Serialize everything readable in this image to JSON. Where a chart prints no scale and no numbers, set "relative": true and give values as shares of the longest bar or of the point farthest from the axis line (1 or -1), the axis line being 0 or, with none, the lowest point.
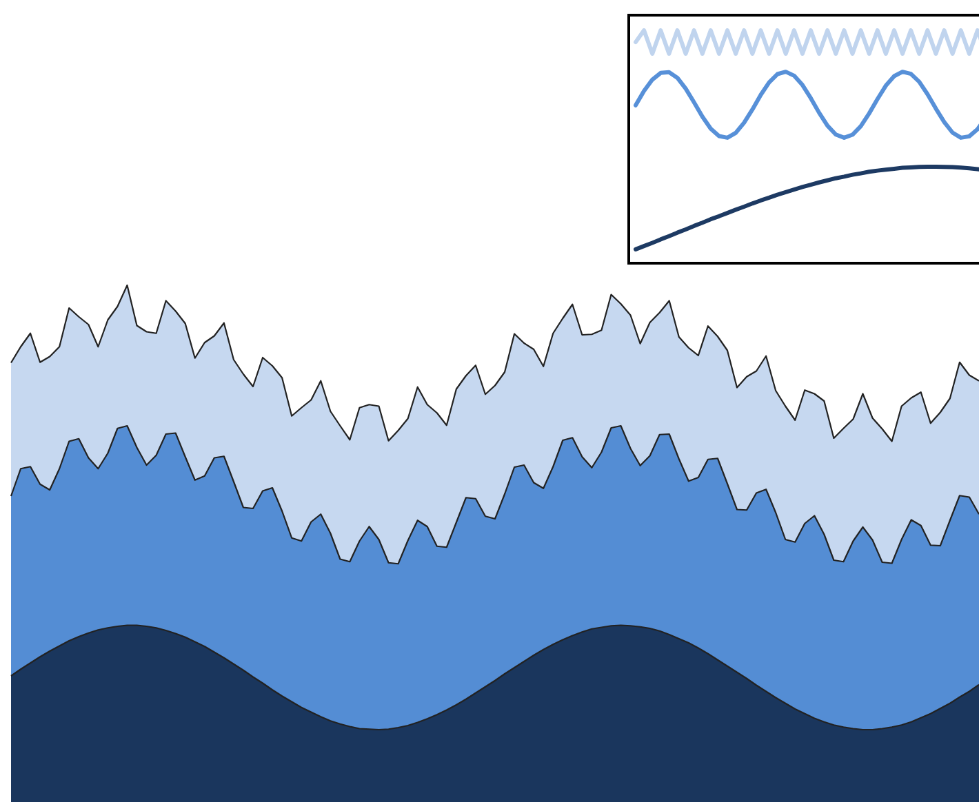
{
  "chart_data": [
    {
      "type": "area",
      "stacked": true,
      "relative": true,
      "categories": [
        null,
        null,
        null,
        null,
        null,
        null,
        null,
        null,
        null,
        null,
        null,
        null,
        null,
        null,
        null,
        null,
        null,
        null,
        null,
        null,
        null,
        null,
        null,
        null,
        null,
        null,
        null,
        null,
        null,
        null,
        null,
        null,
        null,
        null,
        null,
        null,
        null,
        null,
        null,
        null,
        null,
        null,
        null,
        null,
        null,
        null,
        null,
        null,
        null,
        null,
        null,
        null,
        null,
        null,
        null,
        null,
        null,
        null,
        null,
        null,
        null,
        null,
        null,
        null,
        null,
        null,
        null,
        null,
        null,
        null,
        null,
        null,
        null,
        null,
        null,
        null,
        null,
        null,
        null,
        null,
        null,
        null,
        null,
        null,
        null,
        null,
        null,
        null,
        null,
        null,
        null,
        null,
        null,
        null,
        null,
        null,
        null,
        null,
        null,
        null,
        null
      ],
      "series": [
        {
          "color": "#1a365d",
          "values": [
            0.244,
            0.257,
            0.269,
            0.281,
            0.292,
            0.302,
            0.312,
            0.32,
            0.327,
            0.333,
            0.337,
            0.34,
            0.342,
            0.342,
            0.34,
            0.337,
            0.332,
            0.326,
            0.319,
            0.31,
            0.301,
            0.29,
            0.279,
            0.267,
            0.255,
            0.242,
            0.23,
            0.217,
            0.205,
            0.194,
            0.183,
            0.174,
            0.165,
            0.157,
            0.151,
            0.146,
            0.142,
            0.141,
            0.14,
            0.141,
            0.144,
            0.148,
            0.154,
            0.161,
            0.169,
            0.178,
            0.188,
            0.199,
            0.211,
            0.223,
            0.235,
            0.248,
            0.26,
            0.272,
            0.284,
            0.295,
            0.305,
            0.314,
            0.322,
            0.329,
            0.335,
            0.338,
            0.341,
            0.342,
            0.341,
            0.339,
            0.336,
            0.331,
            0.324,
            0.316,
            0.308,
            0.298,
            0.287,
            0.275,
            0.263,
            0.251,
            0.239,
            0.226,
            0.214,
            0.202,
            0.191,
            0.18,
            0.171,
            0.162,
            0.155,
            0.149,
            0.145,
            0.142,
            0.14,
            0.14,
            0.142,
            0.145,
            0.149,
            0.155,
            0.163,
            0.171,
            0.181,
            0.191,
            0.203,
            0.214,
            0.227
          ]
        },
        {
          "color": "#548dd4",
          "values": [
            0.348,
            0.388,
            0.38,
            0.334,
            0.312,
            0.343,
            0.386,
            0.383,
            0.339,
            0.312,
            0.338,
            0.383,
            0.386,
            0.344,
            0.312,
            0.334,
            0.38,
            0.388,
            0.349,
            0.313,
            0.33,
            0.376,
            0.39,
            0.353,
            0.315,
            0.326,
            0.372,
            0.391,
            0.358,
            0.317,
            0.322,
            0.368,
            0.392,
            0.363,
            0.319,
            0.319,
            0.363,
            0.392,
            0.368,
            0.322,
            0.317,
            0.358,
            0.391,
            0.372,
            0.326,
            0.315,
            0.353,
            0.39,
            0.376,
            0.33,
            0.313,
            0.348,
            0.388,
            0.38,
            0.334,
            0.312,
            0.344,
            0.386,
            0.383,
            0.339,
            0.312,
            0.339,
            0.383,
            0.386,
            0.343,
            0.312,
            0.334,
            0.38,
            0.388,
            0.348,
            0.313,
            0.33,
            0.376,
            0.39,
            0.353,
            0.315,
            0.326,
            0.372,
            0.391,
            0.358,
            0.317,
            0.323,
            0.368,
            0.392,
            0.363,
            0.319,
            0.32,
            0.363,
            0.392,
            0.367,
            0.322,
            0.317,
            0.359,
            0.391,
            0.372,
            0.326,
            0.315,
            0.354,
            0.39,
            0.376,
            0.33
          ]
        },
        {
          "color": "#c6d8f0",
          "values": [
            0.258,
            0.236,
            0.258,
            0.236,
            0.258,
            0.236,
            0.258,
            0.236,
            0.258,
            0.236,
            0.258,
            0.236,
            0.272,
            0.236,
            0.258,
            0.236,
            0.258,
            0.236,
            0.258,
            0.236,
            0.258,
            0.236,
            0.258,
            0.236,
            0.258,
            0.236,
            0.258,
            0.236,
            0.258,
            0.236,
            0.258,
            0.236,
            0.258,
            0.236,
            0.258,
            0.236,
            0.258,
            0.236,
            0.258,
            0.236,
            0.258,
            0.236,
            0.258,
            0.236,
            0.258,
            0.236,
            0.258,
            0.236,
            0.258,
            0.236,
            0.258,
            0.236,
            0.258,
            0.236,
            0.258,
            0.236,
            0.258,
            0.236,
            0.258,
            0.236,
            0.258,
            0.236,
            0.258,
            0.236,
            0.258,
            0.236,
            0.258,
            0.236,
            0.258,
            0.236,
            0.258,
            0.236,
            0.258,
            0.236,
            0.258,
            0.236,
            0.258,
            0.236,
            0.258,
            0.236,
            0.258,
            0.236,
            0.258,
            0.236,
            0.258,
            0.236,
            0.258,
            0.236,
            0.258,
            0.236,
            0.258,
            0.236,
            0.258,
            0.236,
            0.258,
            0.236,
            0.258,
            0.236,
            0.258,
            0.236,
            0.258
          ]
        }
      ]
    },
    {
      "type": "line",
      "relative": true,
      "categories": [
        null,
        null,
        null,
        null,
        null,
        null,
        null,
        null,
        null,
        null,
        null,
        null,
        null,
        null,
        null,
        null,
        null,
        null,
        null,
        null,
        null,
        null,
        null,
        null,
        null,
        null,
        null,
        null,
        null,
        null,
        null,
        null,
        null,
        null,
        null,
        null,
        null,
        null,
        null,
        null,
        null,
        null,
        null
      ],
      "series": [
        {
          "color": "#c0d4ee",
          "values": [
            0.949,
            1.0,
            0.899,
            1.0,
            0.899,
            1.0,
            0.899,
            1.0,
            0.899,
            1.0,
            0.899,
            1.0,
            0.899,
            1.0,
            0.899,
            1.0,
            0.899,
            1.0,
            0.899,
            1.0,
            0.899,
            1.0,
            0.899,
            1.0,
            0.899,
            1.0,
            0.899,
            1.0,
            0.899,
            1.0,
            0.899,
            1.0,
            0.899,
            1.0,
            0.899,
            1.0,
            0.899,
            1.0,
            0.899,
            1.0,
            0.899,
            1.0,
            0.899
          ]
        },
        {
          "color": "#5790d8",
          "values": [
            0.676,
            0.738,
            0.787,
            0.816,
            0.819,
            0.795,
            0.748,
            0.689,
            0.627,
            0.575,
            0.543,
            0.536,
            0.557,
            0.601,
            0.658,
            0.721,
            0.775,
            0.811,
            0.821,
            0.804,
            0.764,
            0.707,
            0.644,
            0.588,
            0.55,
            0.536,
            0.549,
            0.586,
            0.641,
            0.703,
            0.761,
            0.802,
            0.821,
            0.812,
            0.778,
            0.724,
            0.662,
            0.604,
            0.558,
            0.536,
            0.542,
            0.573,
            0.624
          ]
        },
        {
          "color": "#1d3a63",
          "values": [
            0.054,
            0.068,
            0.082,
            0.097,
            0.111,
            0.126,
            0.14,
            0.155,
            0.169,
            0.184,
            0.197,
            0.211,
            0.225,
            0.238,
            0.252,
            0.265,
            0.277,
            0.29,
            0.301,
            0.312,
            0.323,
            0.333,
            0.343,
            0.352,
            0.361,
            0.368,
            0.376,
            0.382,
            0.389,
            0.394,
            0.398,
            0.402,
            0.406,
            0.408,
            0.41,
            0.411,
            0.411,
            0.41,
            0.409,
            0.407,
            0.404,
            0.4,
            0.396
          ]
        }
      ]
    }
  ]
}
